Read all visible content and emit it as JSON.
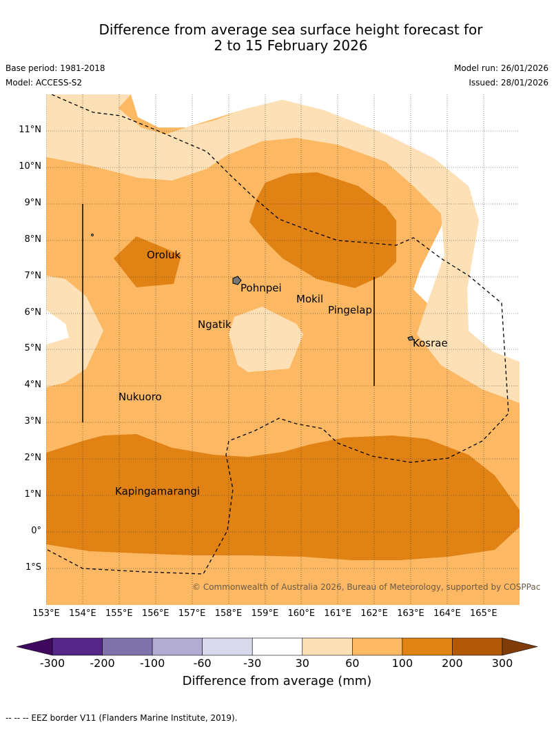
{
  "title_line1": "Difference from average sea surface height forecast for",
  "title_line2": "2 to 15 February 2026",
  "base_period": "Base period: 1981-2018",
  "model": "Model: ACCESS-S2",
  "model_run": "Model run: 26/01/2026",
  "issued": "Issued: 28/01/2026",
  "lat_labels": [
    "11°N",
    "10°N",
    "9°N",
    "8°N",
    "7°N",
    "6°N",
    "5°N",
    "4°N",
    "3°N",
    "2°N",
    "1°N",
    "0°",
    "1°S"
  ],
  "lon_labels": [
    "153°E",
    "154°E",
    "155°E",
    "156°E",
    "157°E",
    "158°E",
    "159°E",
    "160°E",
    "161°E",
    "162°E",
    "163°E",
    "164°E",
    "165°E"
  ],
  "places": {
    "oroluk": "Oroluk",
    "pohnpei": "Pohnpei",
    "mokil": "Mokil",
    "pingelap": "Pingelap",
    "ngatik": "Ngatik",
    "kosrae": "Kosrae",
    "nukuoro": "Nukuoro",
    "kapingamarangi": "Kapingamarangi"
  },
  "copyright": "© Commonwealth of Australia 2026, Bureau of Meteorology, supported by COSPPac",
  "colorbar": {
    "ticks": [
      "-300",
      "-200",
      "-100",
      "-60",
      "-30",
      "30",
      "60",
      "100",
      "200",
      "300"
    ],
    "colors": [
      "#3f0a5e",
      "#542788",
      "#8073ac",
      "#b2abd2",
      "#d8daeb",
      "#ffffff",
      "#fee0b6",
      "#fdb863",
      "#e08214",
      "#b35806",
      "#7f3b08"
    ],
    "title": "Difference from average (mm)"
  },
  "footer": "--  --  -- EEZ border V11 (Flanders Marine Institute, 2019)."
}
